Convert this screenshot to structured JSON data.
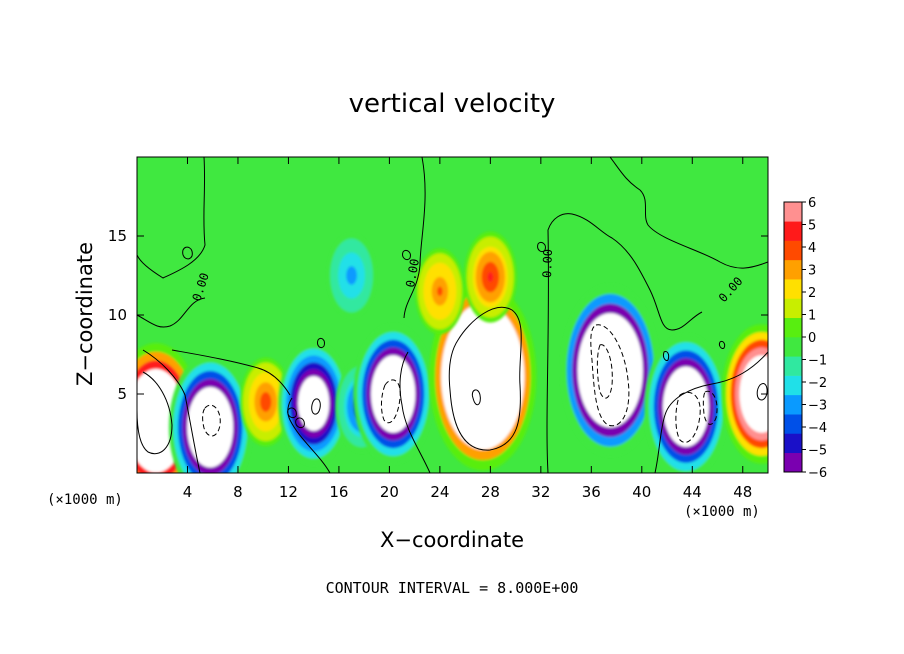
{
  "chart_data": {
    "type": "heatmap",
    "title": "vertical velocity",
    "xlabel": "X−coordinate",
    "ylabel": "Z−coordinate",
    "x_unit_label": "(×1000 m)",
    "y_unit_label": "(×1000 m)",
    "xlim": [
      0,
      50
    ],
    "ylim": [
      0,
      20
    ],
    "x_ticks": [
      4,
      8,
      12,
      16,
      20,
      24,
      28,
      32,
      36,
      40,
      44,
      48
    ],
    "y_ticks": [
      5,
      10,
      15
    ],
    "color_scale": {
      "min": -6,
      "max": 6,
      "ticks": [
        6,
        5,
        4,
        3,
        2,
        1,
        0,
        -1,
        -2,
        -3,
        -4,
        -5,
        -6
      ],
      "tick_labels": [
        "6",
        "5",
        "4",
        "3",
        "2",
        "1",
        "0",
        "−1",
        "−2",
        "−3",
        "−4",
        "−5",
        "−6"
      ],
      "colors": [
        "#7a00b0",
        "#1a10c8",
        "#0050e8",
        "#0a9aff",
        "#20e0e8",
        "#30e8a0",
        "#40e840",
        "#58ee10",
        "#c8ee00",
        "#ffe000",
        "#ffa000",
        "#ff4a00",
        "#ff1a1a",
        "#ff9090"
      ],
      "saturated_color": "#ffffff"
    },
    "contour_interval_label": "CONTOUR INTERVAL = 8.000E+00",
    "contour_labels": [
      "0.00"
    ],
    "features": [
      {
        "x": 1.5,
        "z": 3.3,
        "w": 16
      },
      {
        "x": 5.8,
        "z": 2.9,
        "w": -14
      },
      {
        "x": 10.2,
        "z": 4.5,
        "w": 3.5
      },
      {
        "x": 14.0,
        "z": 4.4,
        "w": -10
      },
      {
        "x": 17.8,
        "z": 4.2,
        "w": -4
      },
      {
        "x": 20.3,
        "z": 5.0,
        "w": -13
      },
      {
        "x": 27.4,
        "z": 6.1,
        "w": 22
      },
      {
        "x": 28.0,
        "z": 12.4,
        "w": 4
      },
      {
        "x": 24.0,
        "z": 11.5,
        "w": 3
      },
      {
        "x": 37.5,
        "z": 6.5,
        "w": -19
      },
      {
        "x": 43.5,
        "z": 4.2,
        "w": -14
      },
      {
        "x": 49.5,
        "z": 5.0,
        "w": 13
      },
      {
        "x": 17.0,
        "z": 12.5,
        "w": -2.5
      }
    ]
  }
}
